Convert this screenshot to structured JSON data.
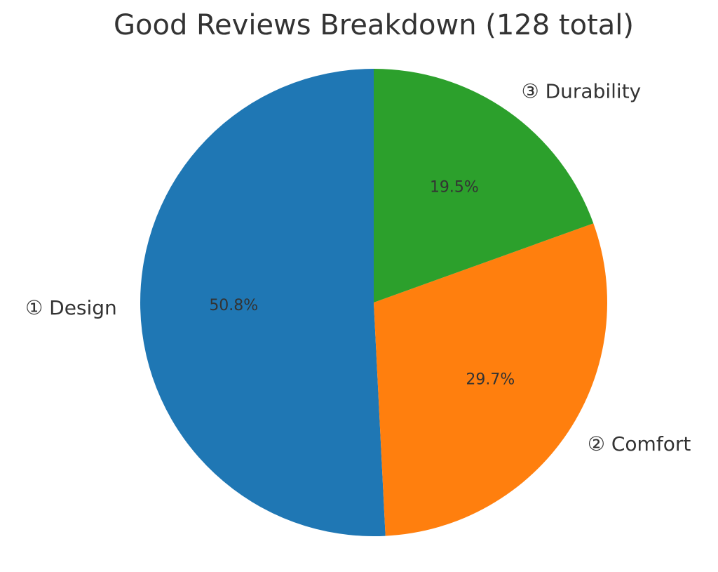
{
  "chart_data": {
    "type": "pie",
    "title": "Good Reviews Breakdown (128 total)",
    "categories": [
      "① Design",
      "② Comfort",
      "③ Durability"
    ],
    "values": [
      50.8,
      29.7,
      19.5
    ],
    "value_labels": [
      "50.8%",
      "29.7%",
      "19.5%"
    ],
    "colors": [
      "#1f77b4",
      "#ff7f0e",
      "#2ca02c"
    ]
  }
}
